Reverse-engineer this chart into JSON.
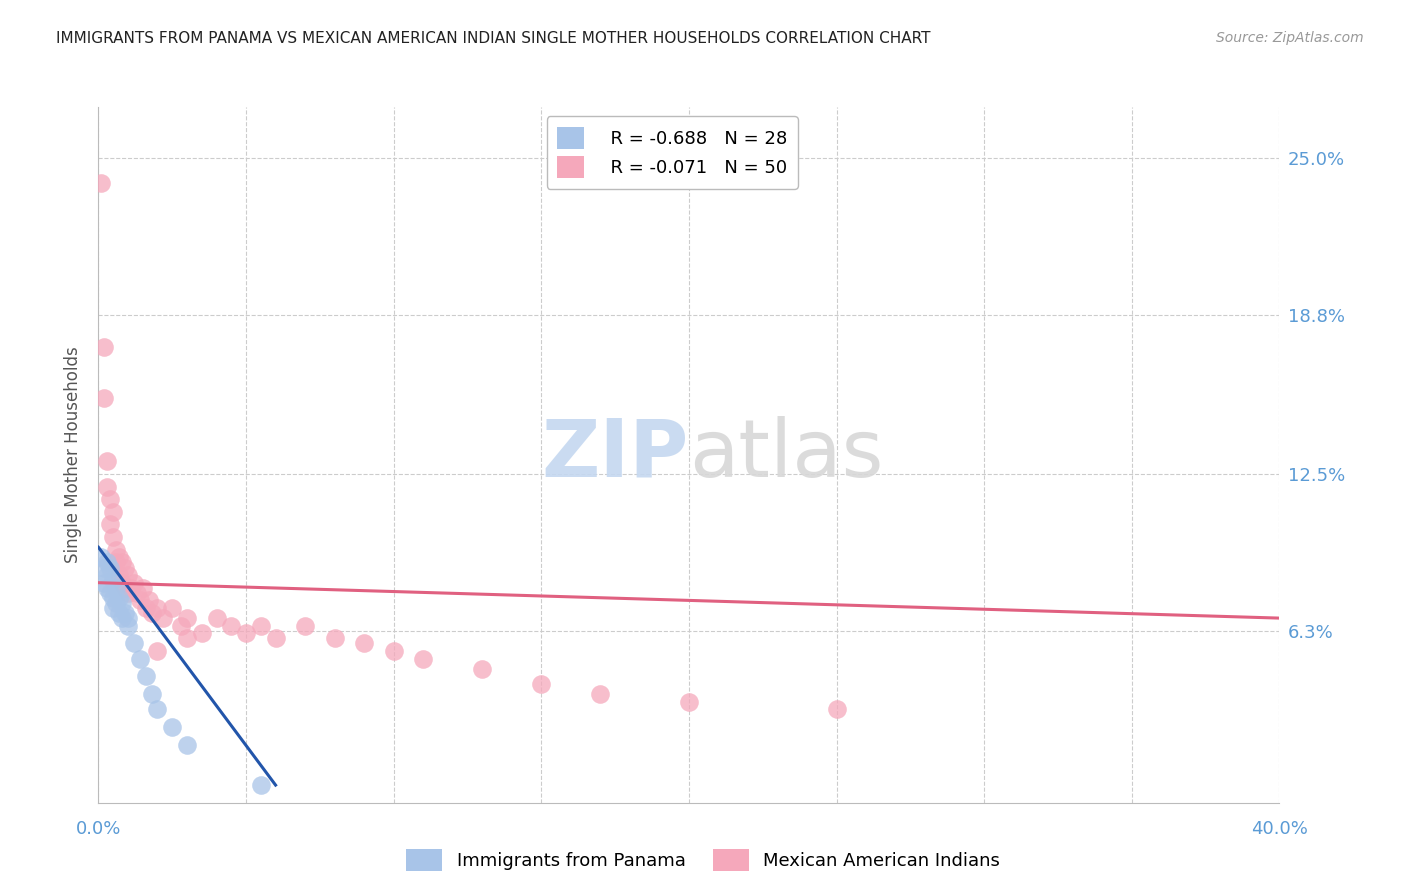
{
  "title": "IMMIGRANTS FROM PANAMA VS MEXICAN AMERICAN INDIAN SINGLE MOTHER HOUSEHOLDS CORRELATION CHART",
  "source": "Source: ZipAtlas.com",
  "ylabel": "Single Mother Households",
  "ytick_labels": [
    "25.0%",
    "18.8%",
    "12.5%",
    "6.3%"
  ],
  "ytick_values": [
    0.25,
    0.188,
    0.125,
    0.063
  ],
  "xlim": [
    0.0,
    0.4
  ],
  "ylim": [
    -0.005,
    0.27
  ],
  "watermark_zip": "ZIP",
  "watermark_atlas": "atlas",
  "legend_blue_r": "R = -0.688",
  "legend_blue_n": "N = 28",
  "legend_pink_r": "R = -0.071",
  "legend_pink_n": "N = 50",
  "legend_label_blue": "Immigrants from Panama",
  "legend_label_pink": "Mexican American Indians",
  "blue_color": "#a8c4e8",
  "pink_color": "#f5a8bb",
  "line_blue_color": "#2255aa",
  "line_pink_color": "#e06080",
  "blue_scatter_x": [
    0.001,
    0.002,
    0.002,
    0.003,
    0.003,
    0.003,
    0.004,
    0.004,
    0.005,
    0.005,
    0.005,
    0.006,
    0.006,
    0.007,
    0.007,
    0.008,
    0.008,
    0.009,
    0.01,
    0.01,
    0.012,
    0.014,
    0.016,
    0.018,
    0.02,
    0.025,
    0.03,
    0.055
  ],
  "blue_scatter_y": [
    0.092,
    0.088,
    0.082,
    0.09,
    0.085,
    0.08,
    0.088,
    0.078,
    0.083,
    0.076,
    0.072,
    0.08,
    0.074,
    0.076,
    0.07,
    0.074,
    0.068,
    0.07,
    0.068,
    0.065,
    0.058,
    0.052,
    0.045,
    0.038,
    0.032,
    0.025,
    0.018,
    0.002
  ],
  "pink_scatter_x": [
    0.001,
    0.002,
    0.002,
    0.003,
    0.003,
    0.004,
    0.004,
    0.005,
    0.005,
    0.006,
    0.006,
    0.007,
    0.007,
    0.008,
    0.008,
    0.009,
    0.009,
    0.01,
    0.01,
    0.011,
    0.012,
    0.013,
    0.014,
    0.015,
    0.016,
    0.017,
    0.018,
    0.02,
    0.022,
    0.025,
    0.028,
    0.03,
    0.035,
    0.04,
    0.045,
    0.05,
    0.055,
    0.06,
    0.07,
    0.08,
    0.09,
    0.1,
    0.11,
    0.13,
    0.15,
    0.17,
    0.2,
    0.25,
    0.03,
    0.02
  ],
  "pink_scatter_y": [
    0.24,
    0.175,
    0.155,
    0.13,
    0.12,
    0.115,
    0.105,
    0.11,
    0.1,
    0.095,
    0.09,
    0.092,
    0.085,
    0.09,
    0.082,
    0.088,
    0.08,
    0.085,
    0.078,
    0.08,
    0.082,
    0.078,
    0.075,
    0.08,
    0.072,
    0.075,
    0.07,
    0.072,
    0.068,
    0.072,
    0.065,
    0.068,
    0.062,
    0.068,
    0.065,
    0.062,
    0.065,
    0.06,
    0.065,
    0.06,
    0.058,
    0.055,
    0.052,
    0.048,
    0.042,
    0.038,
    0.035,
    0.032,
    0.06,
    0.055
  ],
  "blue_line_x": [
    0.0,
    0.06
  ],
  "blue_line_y": [
    0.096,
    0.002
  ],
  "pink_line_x": [
    0.0,
    0.4
  ],
  "pink_line_y": [
    0.082,
    0.068
  ],
  "background_color": "#ffffff",
  "grid_color": "#cccccc",
  "title_color": "#222222",
  "axis_label_color": "#555555",
  "right_tick_color": "#5b9bd5",
  "bottom_tick_color": "#5b9bd5"
}
